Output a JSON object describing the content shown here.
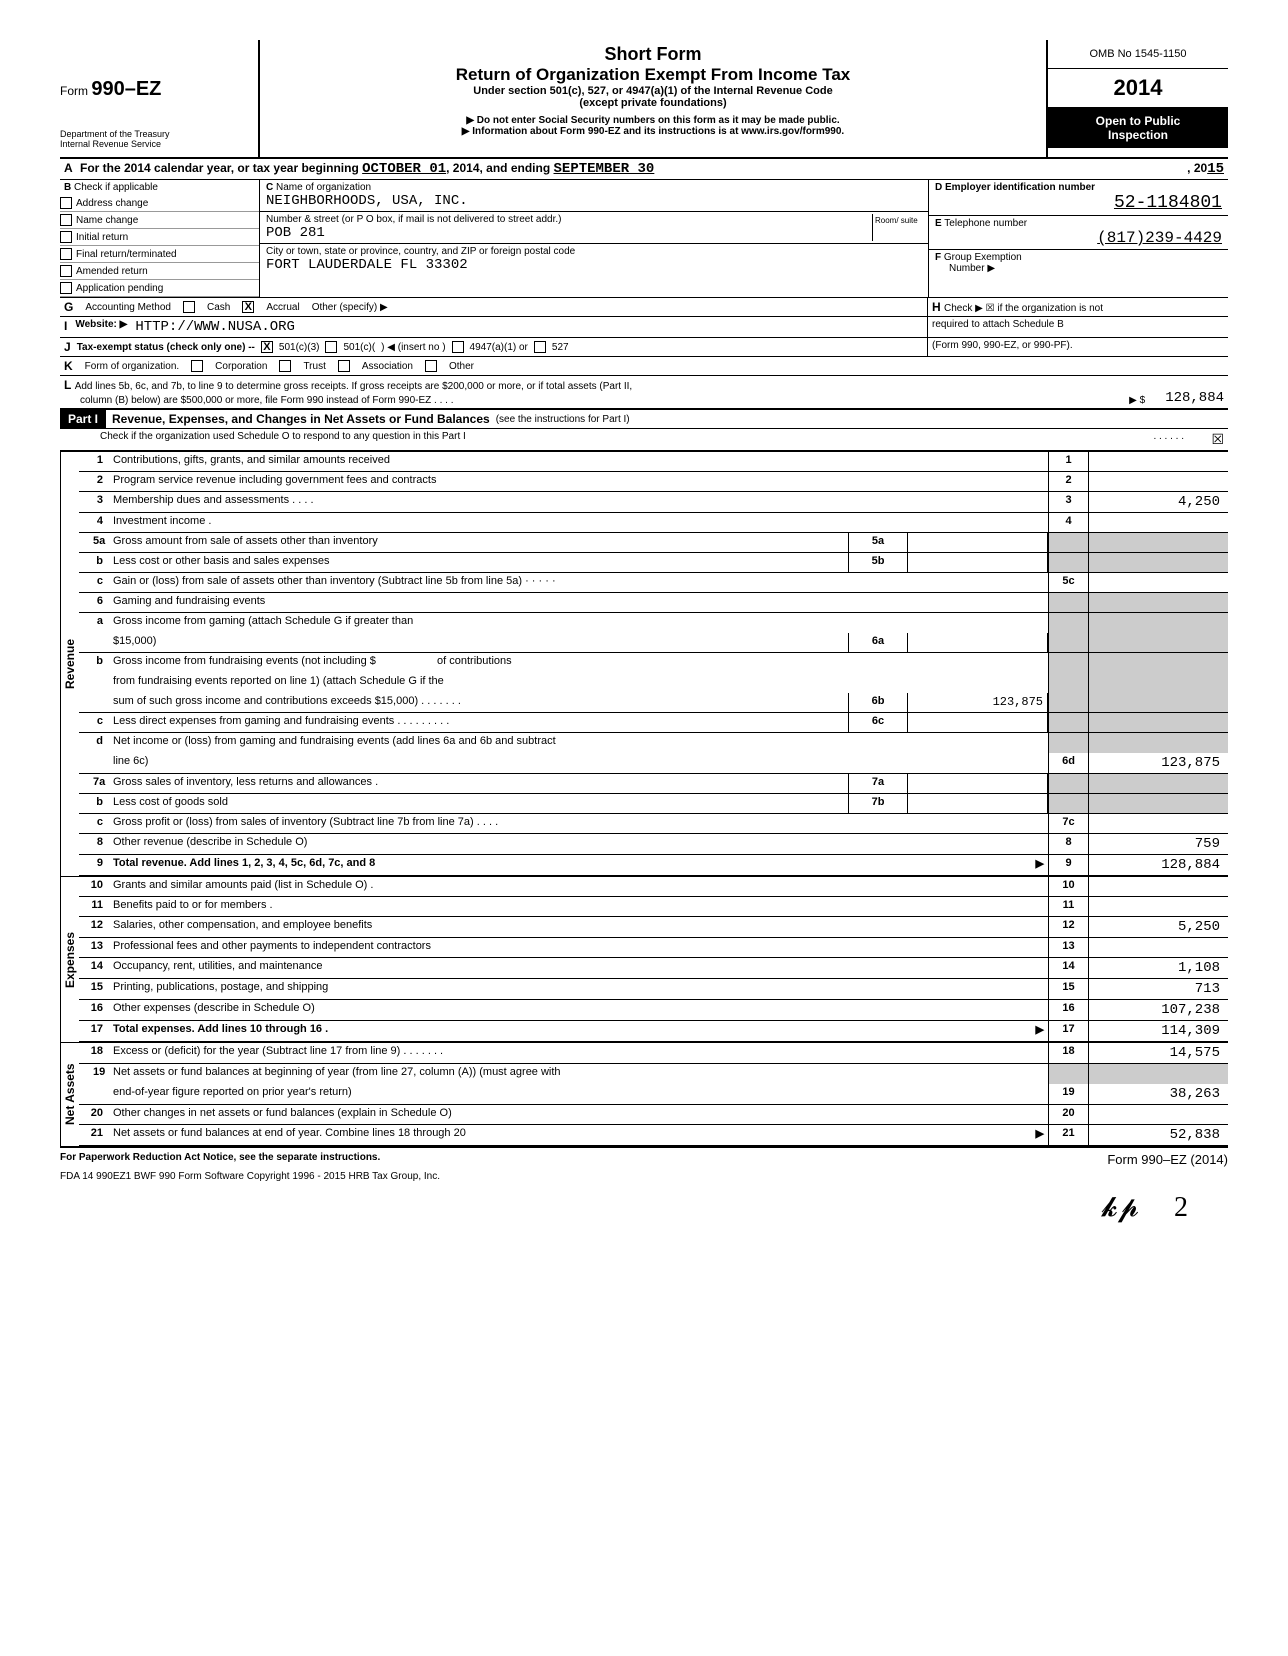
{
  "header": {
    "form_prefix": "Form",
    "form_number": "990–EZ",
    "dept1": "Department of the Treasury",
    "dept2": "Internal Revenue Service",
    "title1": "Short Form",
    "title2": "Return of Organization Exempt From Income Tax",
    "subtitle": "Under section 501(c), 527, or 4947(a)(1) of the Internal Revenue Code",
    "subtitle2": "(except private foundations)",
    "note1": "▶ Do not enter Social Security numbers on this form as it may be made public.",
    "note2": "▶ Information about Form 990-EZ and its instructions is at www.irs.gov/form990.",
    "omb": "OMB No  1545-1150",
    "year": "2014",
    "open1": "Open to Public",
    "open2": "Inspection"
  },
  "section_a": {
    "label": "A",
    "text1": "For the 2014 calendar year, or tax year beginning",
    "begin": "OCTOBER  01",
    "mid": ", 2014, and ending",
    "end": "SEPTEMBER  30",
    "tail": ", 20",
    "yearend": "15"
  },
  "section_b": {
    "label": "B",
    "heading": "Check if applicable",
    "items": [
      "Address change",
      "Name change",
      "Initial return",
      "Final return/terminated",
      "Amended return",
      "Application pending"
    ]
  },
  "section_c": {
    "label": "C",
    "name_label": "Name of organization",
    "name": "NEIGHBORHOODS, USA, INC.",
    "addr_label": "Number & street (or P O  box, if mail is not delivered to street addr.)",
    "room_label": "Room/\nsuite",
    "addr": "POB 281",
    "city_label": "City or town, state or province, country, and ZIP or foreign postal code",
    "city": "FORT LAUDERDALE FL  33302"
  },
  "section_d": {
    "label": "D",
    "heading": "Employer identification number",
    "value": "52-1184801"
  },
  "section_e": {
    "label": "E",
    "heading": "Telephone number",
    "value": "(817)239-4429"
  },
  "section_f": {
    "label": "F",
    "heading": "Group Exemption",
    "sub": "Number  ▶"
  },
  "section_g": {
    "label": "G",
    "heading": "Accounting Method",
    "opts": [
      "Cash",
      "Accrual"
    ],
    "other": "Other (specify) ▶",
    "checked": 1
  },
  "section_h": {
    "label": "H",
    "text": "Check  ▶ ☒ if the organization is not",
    "text2": "required to attach Schedule B"
  },
  "section_i": {
    "label": "I",
    "heading": "Website: ▶",
    "value": "HTTP://WWW.NUSA.ORG"
  },
  "section_j": {
    "label": "J",
    "heading": "Tax-exempt status (check only one) --",
    "opts": [
      "501(c)(3)",
      "501(c)(",
      "4947(a)(1) or",
      "527"
    ],
    "insert": ") ◀ (insert no )",
    "form_note": "(Form 990, 990-EZ, or 990-PF)."
  },
  "section_k": {
    "label": "K",
    "heading": "Form of organization.",
    "opts": [
      "Corporation",
      "Trust",
      "Association",
      "Other"
    ]
  },
  "section_l": {
    "label": "L",
    "text": "Add lines 5b, 6c, and 7b, to line 9 to determine gross receipts. If gross receipts are $200,000 or more,  or if total assets (Part II,",
    "text2": "column (B) below) are $500,000 or more, file Form 990 instead of Form 990-EZ   . . . .",
    "arrow": "▶   $",
    "value": "128,884"
  },
  "part1": {
    "label": "Part I",
    "title": "Revenue, Expenses, and Changes in Net Assets or Fund Balances",
    "title_note": "(see the instructions for Part I)",
    "check_note": "Check if the organization used Schedule O to respond to any question in this Part I",
    "check_dots": ".  . . . . .",
    "check_mark": "☒"
  },
  "sidebar": {
    "revenue": "Revenue",
    "expenses": "Expenses",
    "netassets": "Net Assets"
  },
  "lines": {
    "l1": {
      "n": "1",
      "d": "Contributions, gifts, grants, and similar amounts received",
      "box": "1",
      "v": ""
    },
    "l2": {
      "n": "2",
      "d": "Program service revenue including government fees and contracts",
      "box": "2",
      "v": ""
    },
    "l3": {
      "n": "3",
      "d": "Membership dues and assessments   .  .  . .",
      "box": "3",
      "v": "4,250"
    },
    "l4": {
      "n": "4",
      "d": "Investment income .",
      "box": "4",
      "v": ""
    },
    "l5a": {
      "n": "5a",
      "d": "Gross amount from sale of assets other than inventory",
      "mini": "5a"
    },
    "l5b": {
      "n": "b",
      "d": "Less  cost or other basis and sales expenses",
      "mini": "5b"
    },
    "l5c": {
      "n": "c",
      "d": "Gain or (loss) from sale of assets other than inventory (Subtract line 5b from line 5a)   · · · · ·",
      "box": "5c",
      "v": ""
    },
    "l6": {
      "n": "6",
      "d": "Gaming and fundraising events"
    },
    "l6a": {
      "n": "a",
      "d": "Gross income from gaming (attach Schedule G if greater than",
      "d2": "$15,000)",
      "mini": "6a"
    },
    "l6b": {
      "n": "b",
      "d": "Gross income from fundraising events (not including   $",
      "d2": "of contributions",
      "d3": "from fundraising events reported on line 1) (attach Schedule G if the",
      "d4": "sum of such gross income and contributions exceeds $15,000) . . . . . . .",
      "mini": "6b",
      "mv": "123,875"
    },
    "l6c": {
      "n": "c",
      "d": "Less  direct expenses from gaming and fundraising events   . . . . .  . . . .",
      "mini": "6c"
    },
    "l6d": {
      "n": "d",
      "d": "Net income or (loss) from gaming and fundraising events (add lines 6a and 6b and subtract",
      "d2": "line 6c)",
      "box": "6d",
      "v": "123,875"
    },
    "l7a": {
      "n": "7a",
      "d": "Gross sales of inventory, less returns and allowances  .",
      "mini": "7a"
    },
    "l7b": {
      "n": "b",
      "d": "Less  cost of goods sold",
      "mini": "7b"
    },
    "l7c": {
      "n": "c",
      "d": "Gross profit or (loss) from sales of inventory (Subtract line 7b from line 7a)    .  .  . .",
      "box": "7c",
      "v": ""
    },
    "l8": {
      "n": "8",
      "d": "Other revenue (describe in Schedule O)",
      "box": "8",
      "v": "759"
    },
    "l9": {
      "n": "9",
      "d": "Total revenue. Add lines 1, 2, 3, 4, 5c, 6d, 7c, and 8",
      "box": "9",
      "v": "128,884",
      "bold": true,
      "arrow": true
    },
    "l10": {
      "n": "10",
      "d": "Grants and similar amounts paid (list in Schedule O)  .",
      "box": "10",
      "v": ""
    },
    "l11": {
      "n": "11",
      "d": "Benefits paid to or for members .",
      "box": "11",
      "v": ""
    },
    "l12": {
      "n": "12",
      "d": "Salaries, other compensation, and employee benefits",
      "box": "12",
      "v": "5,250"
    },
    "l13": {
      "n": "13",
      "d": "Professional fees and other payments to independent contractors",
      "box": "13",
      "v": ""
    },
    "l14": {
      "n": "14",
      "d": "Occupancy, rent, utilities, and maintenance",
      "box": "14",
      "v": "1,108"
    },
    "l15": {
      "n": "15",
      "d": "Printing, publications, postage, and shipping",
      "box": "15",
      "v": "713"
    },
    "l16": {
      "n": "16",
      "d": "Other expenses (describe in Schedule O)",
      "box": "16",
      "v": "107,238"
    },
    "l17": {
      "n": "17",
      "d": "Total expenses. Add lines 10 through 16 .",
      "box": "17",
      "v": "114,309",
      "bold": true,
      "arrow": true
    },
    "l18": {
      "n": "18",
      "d": "Excess or (deficit) for the year (Subtract line 17 from line 9)    .  .  .  .  .  .  .",
      "box": "18",
      "v": "14,575"
    },
    "l19": {
      "n": "19",
      "d": "Net assets or fund balances at beginning of year (from line 27, column (A)) (must agree with",
      "d2": "end-of-year figure reported on prior year's return)",
      "box": "19",
      "v": "38,263"
    },
    "l20": {
      "n": "20",
      "d": "Other changes in net assets or fund balances (explain in Schedule O)",
      "box": "20",
      "v": ""
    },
    "l21": {
      "n": "21",
      "d": "Net assets or fund balances at end of year. Combine lines 18 through 20",
      "box": "21",
      "v": "52,838",
      "arrow": true
    }
  },
  "footer": {
    "left": "For Paperwork Reduction Act Notice, see the separate instructions.",
    "mid": "FDA     14  990EZ1      BWF 990      Form Software Copyright 1996 - 2015 HRB Tax Group, Inc.",
    "right": "Form 990–EZ (2014)",
    "sig": "✍"
  },
  "colors": {
    "black": "#000000",
    "shade": "#cccccc",
    "white": "#ffffff"
  }
}
